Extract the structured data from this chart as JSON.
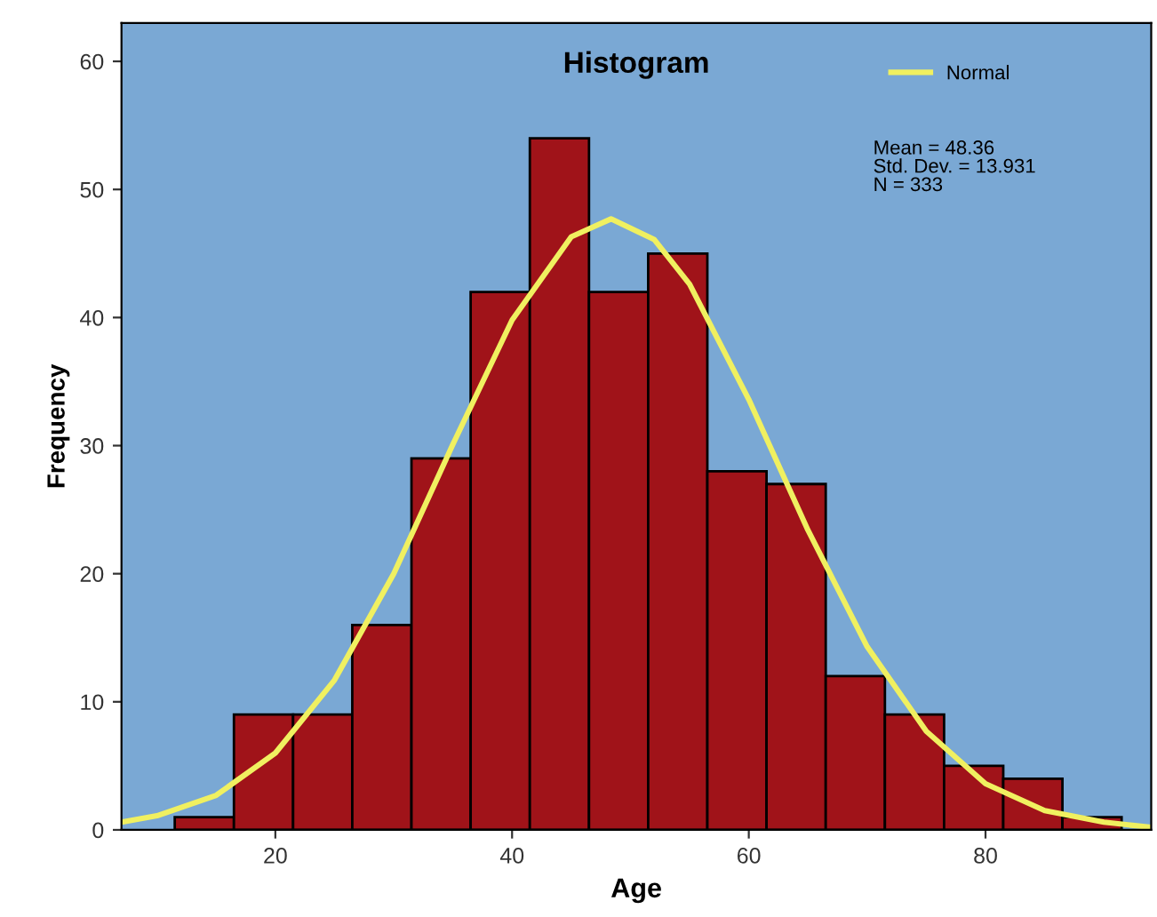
{
  "chart_data": {
    "type": "histogram",
    "title": "Histogram",
    "xlabel": "Age",
    "ylabel": "Frequency",
    "bins": [
      11.5,
      16.5,
      21.5,
      26.5,
      31.5,
      36.5,
      41.5,
      46.5,
      51.5,
      56.5,
      61.5,
      66.5,
      71.5,
      76.5,
      81.5,
      86.5,
      91.5
    ],
    "series": [
      {
        "color": "#a01319",
        "values": [
          1,
          9,
          9,
          16,
          29,
          42,
          54,
          42,
          45,
          28,
          27,
          12,
          9,
          5,
          4,
          1
        ]
      },
      {
        "type": "line",
        "name": "Normal",
        "color": "#f0f060",
        "x": [
          7,
          10,
          15,
          20,
          25,
          30,
          35,
          40,
          45,
          48.36,
          52,
          55,
          60,
          65,
          70,
          75,
          80,
          85,
          90,
          94
        ],
        "values": [
          0.6,
          1.1,
          2.7,
          6.0,
          11.7,
          20.0,
          30.1,
          39.8,
          46.3,
          47.7,
          46.1,
          42.6,
          33.6,
          23.4,
          14.3,
          7.7,
          3.6,
          1.5,
          0.6,
          0.2
        ]
      }
    ],
    "xlim": [
      7,
      94
    ],
    "xticks": [
      20,
      40,
      60,
      80
    ],
    "ylim": [
      0,
      63
    ],
    "yticks": [
      0,
      10,
      20,
      30,
      40,
      50,
      60
    ],
    "grid": false,
    "legend": "top right",
    "marker": "none",
    "line_style": "solid",
    "annotations": [
      "Mean = 48.36",
      "Std. Dev. = 13.931",
      "N = 333"
    ]
  }
}
